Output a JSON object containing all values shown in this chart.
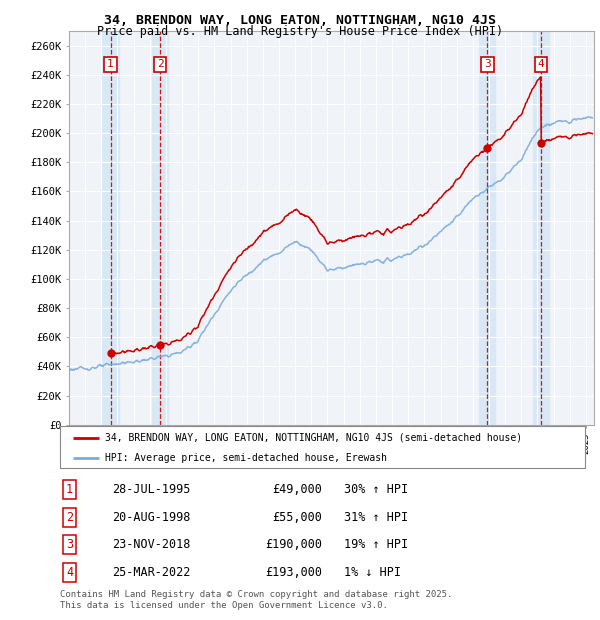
{
  "title1": "34, BRENDON WAY, LONG EATON, NOTTINGHAM, NG10 4JS",
  "title2": "Price paid vs. HM Land Registry's House Price Index (HPI)",
  "ylabel_ticks": [
    "£0",
    "£20K",
    "£40K",
    "£60K",
    "£80K",
    "£100K",
    "£120K",
    "£140K",
    "£160K",
    "£180K",
    "£200K",
    "£220K",
    "£240K",
    "£260K"
  ],
  "ytick_values": [
    0,
    20000,
    40000,
    60000,
    80000,
    100000,
    120000,
    140000,
    160000,
    180000,
    200000,
    220000,
    240000,
    260000
  ],
  "sale_color": "#cc0000",
  "hpi_color": "#7aabdc",
  "grid_color": "#cccccc",
  "band_color": "#d8e8f5",
  "sale_points": [
    {
      "date_num": 1995.57,
      "price": 49000,
      "label": "1"
    },
    {
      "date_num": 1998.64,
      "price": 55000,
      "label": "2"
    },
    {
      "date_num": 2018.9,
      "price": 190000,
      "label": "3"
    },
    {
      "date_num": 2022.23,
      "price": 193000,
      "label": "4"
    }
  ],
  "legend_sale_label": "34, BRENDON WAY, LONG EATON, NOTTINGHAM, NG10 4JS (semi-detached house)",
  "legend_hpi_label": "HPI: Average price, semi-detached house, Erewash",
  "table_rows": [
    {
      "num": "1",
      "date": "28-JUL-1995",
      "price": "£49,000",
      "hpi": "30% ↑ HPI"
    },
    {
      "num": "2",
      "date": "20-AUG-1998",
      "price": "£55,000",
      "hpi": "31% ↑ HPI"
    },
    {
      "num": "3",
      "date": "23-NOV-2018",
      "price": "£190,000",
      "hpi": "19% ↑ HPI"
    },
    {
      "num": "4",
      "date": "25-MAR-2022",
      "price": "£193,000",
      "hpi": "1% ↓ HPI"
    }
  ],
  "footer": "Contains HM Land Registry data © Crown copyright and database right 2025.\nThis data is licensed under the Open Government Licence v3.0.",
  "xmin": 1993.0,
  "xmax": 2025.5,
  "ymin": 0,
  "ymax": 270000
}
